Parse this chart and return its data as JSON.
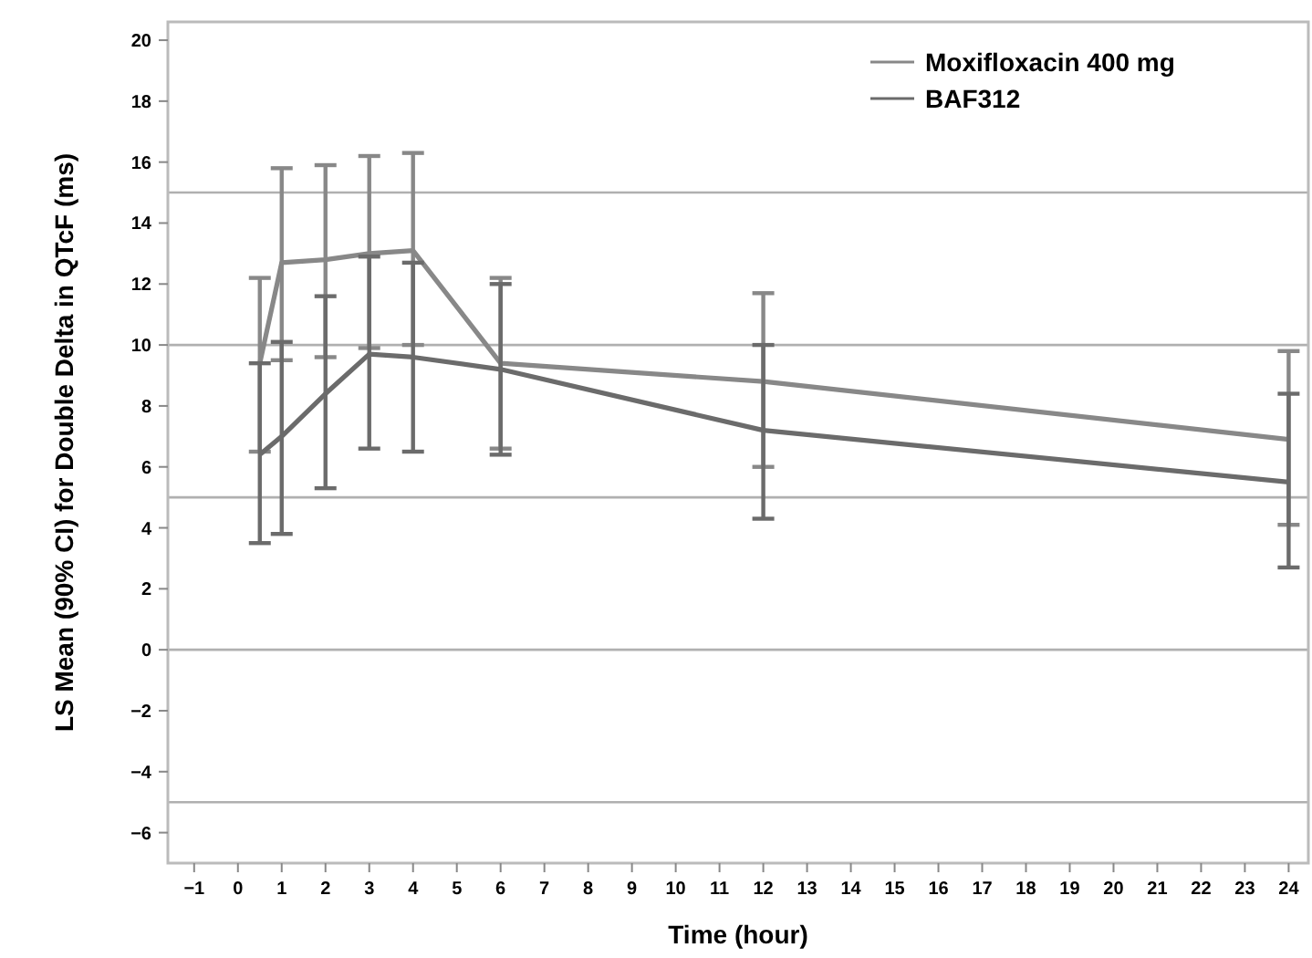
{
  "chart_data": {
    "type": "line",
    "xlabel": "Time (hour)",
    "ylabel": "LS Mean (90% CI) for Double Delta in QTcF (ms)",
    "x": [
      0.5,
      1,
      2,
      3,
      4,
      6,
      12,
      24
    ],
    "series": [
      {
        "name": "Moxifloxacin 400 mg",
        "color": "#888888",
        "values": [
          9.4,
          12.7,
          12.8,
          13.0,
          13.1,
          9.4,
          8.8,
          6.9
        ],
        "errors": [
          [
            6.5,
            12.2
          ],
          [
            9.5,
            15.8
          ],
          [
            9.6,
            15.9
          ],
          [
            9.9,
            16.2
          ],
          [
            10.0,
            16.3
          ],
          [
            6.6,
            12.2
          ],
          [
            6.0,
            11.7
          ],
          [
            4.1,
            9.8
          ]
        ]
      },
      {
        "name": "BAF312",
        "color": "#6b6b6b",
        "values": [
          6.4,
          7.0,
          8.4,
          9.7,
          9.6,
          9.2,
          7.2,
          5.5
        ],
        "errors": [
          [
            3.5,
            9.4
          ],
          [
            3.8,
            10.1
          ],
          [
            5.3,
            11.6
          ],
          [
            6.6,
            12.9
          ],
          [
            6.5,
            12.7
          ],
          [
            6.4,
            12.0
          ],
          [
            4.3,
            10.0
          ],
          [
            2.7,
            8.4
          ]
        ]
      }
    ],
    "xlim": [
      -1.6,
      24.45
    ],
    "ylim": [
      -7,
      20.6
    ],
    "xticks": [
      -1,
      0,
      1,
      2,
      3,
      4,
      5,
      6,
      7,
      8,
      9,
      10,
      11,
      12,
      13,
      14,
      15,
      16,
      17,
      18,
      19,
      20,
      21,
      22,
      23,
      24
    ],
    "yticks": [
      -6,
      -4,
      -2,
      0,
      2,
      4,
      6,
      8,
      10,
      12,
      14,
      16,
      18,
      20
    ],
    "ref_lines": [
      {
        "axis": "y",
        "value": -5,
        "color": "#b0b0b0"
      },
      {
        "axis": "y",
        "value": 0,
        "color": "#b0b0b0"
      },
      {
        "axis": "y",
        "value": 5,
        "color": "#b0b0b0"
      },
      {
        "axis": "y",
        "value": 10,
        "color": "#b0b0b0"
      },
      {
        "axis": "y",
        "value": 15,
        "color": "#b0b0b0"
      }
    ],
    "legend": "top right",
    "marker": "none",
    "line_style": "solid",
    "grid": false
  }
}
